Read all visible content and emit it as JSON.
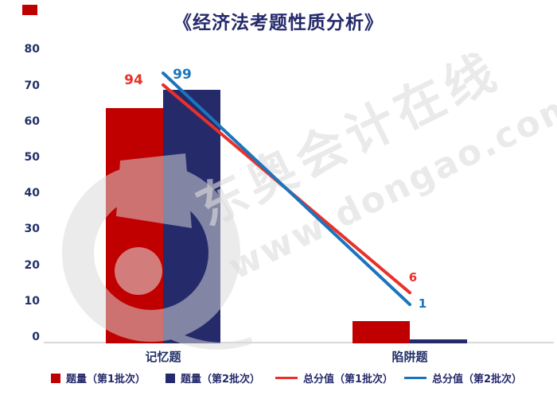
{
  "title": "《经济法考题性质分析》",
  "watermark": {
    "brand_text": "东奥会计在线",
    "url_text": "www.dongao.com",
    "logo": "dongao-circle-logo"
  },
  "chart_data": {
    "type": "combo-bar-line",
    "title": "《经济法考题性质分析》",
    "categories": [
      "记忆题",
      "陷阱题"
    ],
    "bar_series": [
      {
        "name": "题量（第1批次）",
        "values": [
          64,
          6
        ],
        "color": "#C00000"
      },
      {
        "name": "题量（第2批次）",
        "values": [
          69,
          1
        ],
        "color": "#252A6B"
      }
    ],
    "line_series": [
      {
        "name": "总分值（第1批次）",
        "values": [
          94,
          6
        ],
        "labels": [
          "94",
          "6"
        ],
        "color": "#E8312B"
      },
      {
        "name": "总分值（第2批次）",
        "values": [
          99,
          1
        ],
        "labels": [
          "99",
          "1"
        ],
        "color": "#1B75BC"
      }
    ],
    "y_axis": {
      "min": 0,
      "max": 80,
      "step": 10,
      "ticks": [
        "0",
        "10",
        "20",
        "30",
        "40",
        "50",
        "60",
        "70",
        "80"
      ]
    },
    "x_axis": {
      "labels": [
        "记忆题",
        "陷阱题"
      ]
    },
    "grid": false,
    "legend_position": "bottom"
  },
  "colors": {
    "bar_batch1": "#C00000",
    "bar_batch2": "#252A6B",
    "line_batch1": "#E8312B",
    "line_batch2": "#1B75BC",
    "axis_text": "#223068",
    "title_text": "#252A6B",
    "axis_line": "#D9D9D9",
    "watermark": "#DDDDDD",
    "background": "#FFFFFF"
  }
}
